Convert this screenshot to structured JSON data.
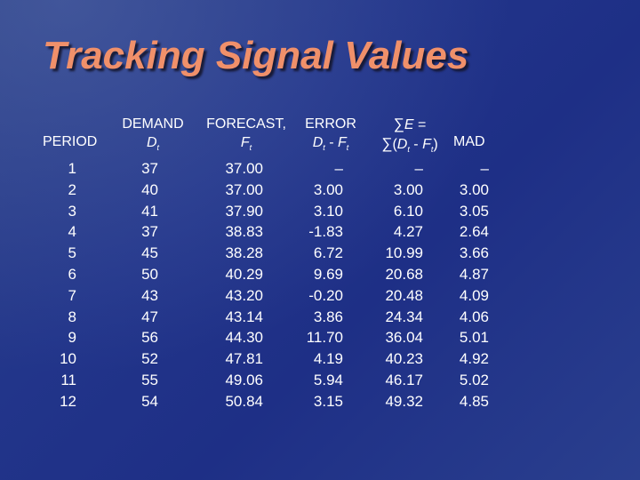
{
  "slide": {
    "title": "Tracking Signal Values"
  },
  "table": {
    "headers": {
      "period": "PERIOD",
      "demand_line1": "DEMAND",
      "demand_var": "D",
      "demand_sub": "t",
      "forecast_line1": "FORECAST,",
      "forecast_var": "F",
      "forecast_sub": "t",
      "error_line1": "ERROR",
      "error_d": "D",
      "error_d_sub": "t",
      "error_minus": " - ",
      "error_f": "F",
      "error_f_sub": "t",
      "sum_sigma": "∑",
      "sum_e": "E",
      "sum_eq": " =",
      "sum2_sigma": "∑",
      "sum2_open": "(",
      "sum2_d": "D",
      "sum2_d_sub": "t",
      "sum2_minus": " - ",
      "sum2_f": "F",
      "sum2_f_sub": "t",
      "sum2_close": ")",
      "mad": "MAD"
    },
    "columns": {
      "period": [
        "1",
        "2",
        "3",
        "4",
        "5",
        "6",
        "7",
        "8",
        "9",
        "10",
        "11",
        "12"
      ],
      "demand": [
        "37",
        "40",
        "41",
        "37",
        "45",
        "50",
        "43",
        "47",
        "56",
        "52",
        "55",
        "54"
      ],
      "forecast": [
        "37.00",
        "37.00",
        "37.90",
        "38.83",
        "38.28",
        "40.29",
        "43.20",
        "43.14",
        "44.30",
        "47.81",
        "49.06",
        "50.84"
      ],
      "error": [
        "–",
        "3.00",
        "3.10",
        "-1.83",
        "6.72",
        "9.69",
        "-0.20",
        "3.86",
        "11.70",
        "4.19",
        "5.94",
        "3.15"
      ],
      "cumulative_error": [
        "–",
        "3.00",
        "6.10",
        "4.27",
        "10.99",
        "20.68",
        "20.48",
        "24.34",
        "36.04",
        "40.23",
        "46.17",
        "49.32"
      ],
      "mad": [
        "–",
        "3.00",
        "3.05",
        "2.64",
        "3.66",
        "4.87",
        "4.09",
        "4.06",
        "5.01",
        "4.92",
        "5.02",
        "4.85"
      ]
    }
  }
}
